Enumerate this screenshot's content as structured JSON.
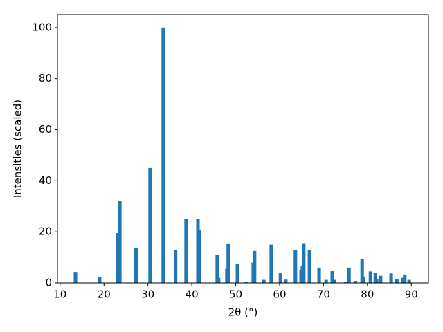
{
  "chart_data": {
    "type": "bar",
    "x": [
      13.5,
      19.0,
      23.2,
      23.6,
      27.3,
      30.5,
      33.5,
      36.3,
      38.7,
      41.4,
      41.7,
      45.8,
      46.1,
      48.0,
      48.3,
      50.4,
      52.4,
      54.0,
      54.3,
      56.4,
      58.1,
      60.2,
      61.4,
      63.6,
      64.9,
      65.2,
      65.5,
      66.8,
      69.0,
      70.6,
      72.0,
      72.5,
      75.1,
      75.8,
      77.3,
      78.8,
      79.1,
      80.7,
      81.8,
      82.1,
      83.0,
      85.4,
      86.7,
      88.1,
      88.5,
      89.5
    ],
    "values": [
      4.3,
      2.2,
      19.5,
      32.2,
      13.6,
      45,
      100,
      12.8,
      25,
      25,
      20.8,
      11,
      2,
      5.5,
      15.2,
      7.6,
      0.5,
      8,
      12.5,
      1.2,
      15,
      4,
      1.3,
      13,
      5,
      6.5,
      15.3,
      12.8,
      6,
      1.2,
      4.6,
      1.2,
      0.5,
      6,
      0.8,
      9.5,
      2.5,
      4.5,
      3.8,
      1.5,
      2.8,
      3.7,
      1.6,
      2,
      3.3,
      1.2
    ],
    "color": "#1f77b4",
    "xlabel": "2θ (°)",
    "ylabel": "Intensities (scaled)",
    "xlim": [
      9.4,
      93.9
    ],
    "ylim": [
      0,
      105.1
    ],
    "xticks": [
      10,
      20,
      30,
      40,
      50,
      60,
      70,
      80,
      90
    ],
    "yticks": [
      0,
      20,
      40,
      60,
      80,
      100
    ],
    "grid": false
  }
}
